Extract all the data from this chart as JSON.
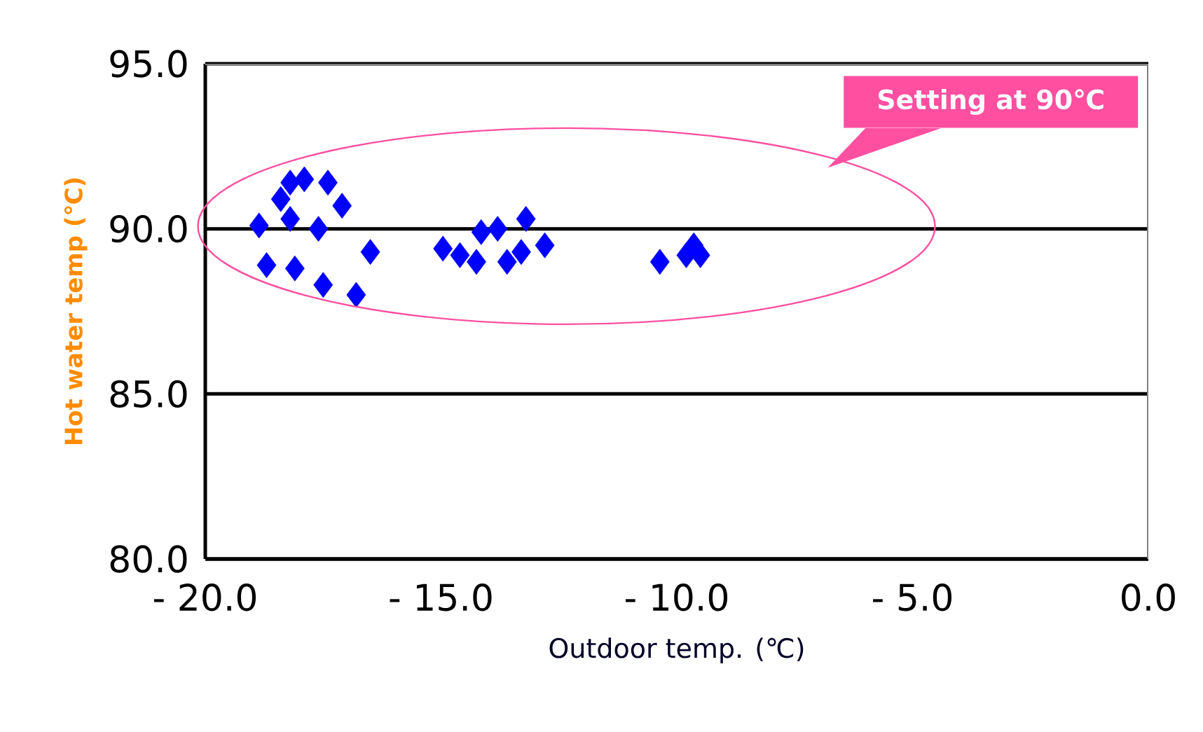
{
  "chart_data": {
    "type": "scatter",
    "xlabel": "Outdoor temp.  (℃)",
    "ylabel": "Hot water temp (℃)",
    "annotations": [
      "Setting at 90℃"
    ],
    "series": [
      {
        "color": "#0000ff",
        "x": [
          -18.86,
          -18.7,
          -18.1,
          -17.5,
          -16.8,
          -16.5,
          -18.2,
          -17.9,
          -17.4,
          -17.1,
          -17.6,
          -18.2,
          -18.4,
          -14.96,
          -14.6,
          -14.25,
          -14.15,
          -13.8,
          -13.6,
          -13.3,
          -13.2,
          -12.8,
          -10.36,
          -9.8,
          -9.64,
          -9.5
        ],
        "values": [
          90.1,
          88.9,
          88.8,
          88.3,
          88.0,
          89.3,
          91.4,
          91.5,
          91.4,
          90.7,
          90.0,
          90.3,
          90.9,
          89.4,
          89.2,
          89.0,
          89.9,
          90.0,
          89.0,
          89.3,
          90.3,
          89.5,
          89.0,
          89.2,
          89.5,
          89.2
        ]
      }
    ],
    "marker": "diamond",
    "grid": "y",
    "xlim": [
      -20,
      0
    ],
    "ylim": [
      80,
      95
    ],
    "xticks": [
      {
        "value": -20,
        "label": "- 20.0"
      },
      {
        "value": -15,
        "label": "- 15.0"
      },
      {
        "value": -10,
        "label": "- 10.0"
      },
      {
        "value": -5,
        "label": "- 5.0"
      },
      {
        "value": 0,
        "label": "0.0"
      }
    ],
    "yticks": [
      {
        "value": 80,
        "label": "80.0"
      },
      {
        "value": 85,
        "label": "85.0"
      },
      {
        "value": 90,
        "label": "90.0"
      },
      {
        "value": 95,
        "label": "95.0"
      }
    ]
  }
}
